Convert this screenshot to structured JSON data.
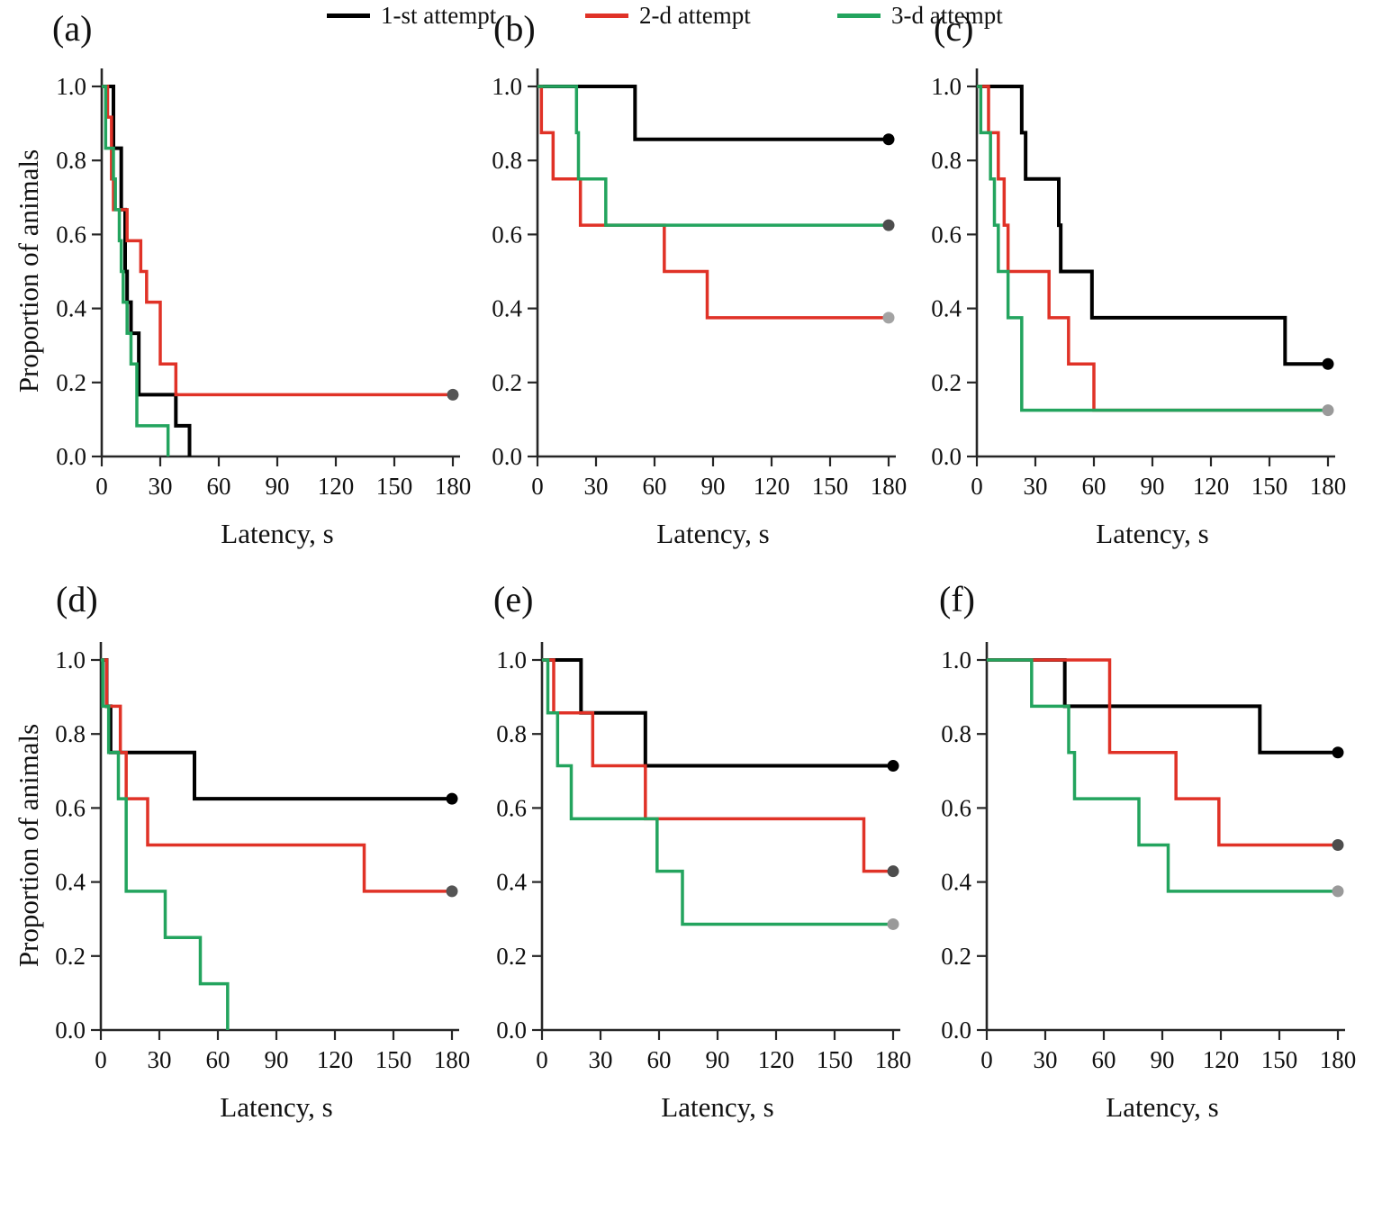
{
  "figure": {
    "panel_labels": [
      "(a)",
      "(b)",
      "(c)",
      "(d)",
      "(e)",
      "(f)"
    ],
    "y_axis_title": "Proportion of animals",
    "x_axis_title": "Latency, s",
    "axis_color": "#262626",
    "legend": [
      {
        "label": "1-st attempt",
        "color": "#000000"
      },
      {
        "label": "2-d attempt",
        "color": "#e03227"
      },
      {
        "label": "3-d attempt",
        "color": "#23a45e"
      }
    ]
  },
  "chart_data": [
    {
      "panel": "(a)",
      "type": "line",
      "subtype": "kaplan-meier-step",
      "xlabel": "Latency, s",
      "ylabel": "Proportion of animals",
      "show_ylabel": true,
      "xlim": [
        0,
        180
      ],
      "ylim": [
        0.0,
        1.0
      ],
      "xticks": [
        0,
        30,
        60,
        90,
        120,
        150,
        180
      ],
      "yticks": [
        "0.0",
        "0.2",
        "0.4",
        "0.6",
        "0.8",
        "1.0"
      ],
      "series": [
        {
          "name": "1-st attempt",
          "color": "#000000",
          "width": 4,
          "points": [
            [
              0,
              1.0
            ],
            [
              6,
              0.833
            ],
            [
              10,
              0.667
            ],
            [
              12,
              0.5
            ],
            [
              13,
              0.417
            ],
            [
              15,
              0.333
            ],
            [
              19,
              0.167
            ],
            [
              38,
              0.083
            ],
            [
              45,
              0.0
            ]
          ],
          "end_dot": null
        },
        {
          "name": "2-d attempt",
          "color": "#e03227",
          "width": 3.5,
          "points": [
            [
              0,
              1.0
            ],
            [
              3,
              0.917
            ],
            [
              5,
              0.75
            ],
            [
              6,
              0.667
            ],
            [
              13,
              0.583
            ],
            [
              20,
              0.5
            ],
            [
              23,
              0.417
            ],
            [
              30,
              0.25
            ],
            [
              38,
              0.167
            ],
            [
              180,
              0.167
            ]
          ],
          "end_dot": "#555555"
        },
        {
          "name": "3-d attempt",
          "color": "#23a45e",
          "width": 3.5,
          "points": [
            [
              0,
              1.0
            ],
            [
              2,
              0.833
            ],
            [
              6,
              0.75
            ],
            [
              7,
              0.667
            ],
            [
              9,
              0.583
            ],
            [
              10,
              0.5
            ],
            [
              11,
              0.417
            ],
            [
              13,
              0.333
            ],
            [
              15,
              0.25
            ],
            [
              18,
              0.083
            ],
            [
              34,
              0.0
            ]
          ],
          "end_dot": null
        }
      ]
    },
    {
      "panel": "(b)",
      "type": "line",
      "subtype": "kaplan-meier-step",
      "xlabel": "Latency, s",
      "ylabel": "Proportion of animals",
      "show_ylabel": false,
      "xlim": [
        0,
        180
      ],
      "ylim": [
        0.0,
        1.0
      ],
      "xticks": [
        0,
        30,
        60,
        90,
        120,
        150,
        180
      ],
      "yticks": [
        "0.0",
        "0.2",
        "0.4",
        "0.6",
        "0.8",
        "1.0"
      ],
      "series": [
        {
          "name": "1-st attempt",
          "color": "#000000",
          "width": 4,
          "points": [
            [
              0,
              1.0
            ],
            [
              50,
              0.857
            ],
            [
              180,
              0.857
            ]
          ],
          "end_dot": "#000000"
        },
        {
          "name": "2-d attempt",
          "color": "#e03227",
          "width": 3.5,
          "points": [
            [
              0,
              1.0
            ],
            [
              2,
              0.875
            ],
            [
              8,
              0.75
            ],
            [
              22,
              0.625
            ],
            [
              65,
              0.5
            ],
            [
              87,
              0.375
            ],
            [
              180,
              0.375
            ]
          ],
          "end_dot": "#a3a3a3"
        },
        {
          "name": "3-d attempt",
          "color": "#23a45e",
          "width": 3.5,
          "points": [
            [
              0,
              1.0
            ],
            [
              20,
              0.875
            ],
            [
              21,
              0.75
            ],
            [
              35,
              0.625
            ],
            [
              180,
              0.625
            ]
          ],
          "end_dot": "#4d4d4d"
        }
      ]
    },
    {
      "panel": "(c)",
      "type": "line",
      "subtype": "kaplan-meier-step",
      "xlabel": "Latency, s",
      "ylabel": "Proportion of animals",
      "show_ylabel": false,
      "xlim": [
        0,
        180
      ],
      "ylim": [
        0.0,
        1.0
      ],
      "xticks": [
        0,
        30,
        60,
        90,
        120,
        150,
        180
      ],
      "yticks": [
        "0.0",
        "0.2",
        "0.4",
        "0.6",
        "0.8",
        "1.0"
      ],
      "series": [
        {
          "name": "1-st attempt",
          "color": "#000000",
          "width": 4,
          "points": [
            [
              0,
              1.0
            ],
            [
              23,
              0.875
            ],
            [
              25,
              0.75
            ],
            [
              42,
              0.625
            ],
            [
              43,
              0.5
            ],
            [
              59,
              0.375
            ],
            [
              158,
              0.25
            ],
            [
              180,
              0.25
            ]
          ],
          "end_dot": "#000000"
        },
        {
          "name": "2-d attempt",
          "color": "#e03227",
          "width": 3.5,
          "points": [
            [
              0,
              1.0
            ],
            [
              6,
              0.875
            ],
            [
              11,
              0.75
            ],
            [
              14,
              0.625
            ],
            [
              16,
              0.5
            ],
            [
              37,
              0.375
            ],
            [
              47,
              0.25
            ],
            [
              60,
              0.125
            ],
            [
              180,
              0.125
            ]
          ],
          "end_dot": null
        },
        {
          "name": "3-d attempt",
          "color": "#23a45e",
          "width": 3.5,
          "points": [
            [
              0,
              1.0
            ],
            [
              2,
              0.875
            ],
            [
              7,
              0.75
            ],
            [
              9,
              0.625
            ],
            [
              11,
              0.5
            ],
            [
              16,
              0.375
            ],
            [
              23,
              0.125
            ],
            [
              180,
              0.125
            ]
          ],
          "end_dot": "#9a9a9a"
        }
      ]
    },
    {
      "panel": "(d)",
      "type": "line",
      "subtype": "kaplan-meier-step",
      "xlabel": "Latency, s",
      "ylabel": "Proportion of animals",
      "show_ylabel": true,
      "xlim": [
        0,
        180
      ],
      "ylim": [
        0.0,
        1.0
      ],
      "xticks": [
        0,
        30,
        60,
        90,
        120,
        150,
        180
      ],
      "yticks": [
        "0.0",
        "0.2",
        "0.4",
        "0.6",
        "0.8",
        "1.0"
      ],
      "series": [
        {
          "name": "1-st attempt",
          "color": "#000000",
          "width": 4,
          "points": [
            [
              0,
              1.0
            ],
            [
              3,
              0.875
            ],
            [
              5,
              0.75
            ],
            [
              48,
              0.625
            ],
            [
              180,
              0.625
            ]
          ],
          "end_dot": "#000000"
        },
        {
          "name": "2-d attempt",
          "color": "#e03227",
          "width": 3.5,
          "points": [
            [
              0,
              1.0
            ],
            [
              3,
              0.875
            ],
            [
              10,
              0.75
            ],
            [
              13,
              0.625
            ],
            [
              24,
              0.5
            ],
            [
              135,
              0.375
            ],
            [
              180,
              0.375
            ]
          ],
          "end_dot": "#555555"
        },
        {
          "name": "3-d attempt",
          "color": "#23a45e",
          "width": 3.5,
          "points": [
            [
              0,
              1.0
            ],
            [
              1,
              0.875
            ],
            [
              4,
              0.75
            ],
            [
              9,
              0.625
            ],
            [
              13,
              0.375
            ],
            [
              33,
              0.25
            ],
            [
              51,
              0.125
            ],
            [
              65,
              0.0
            ]
          ],
          "end_dot": null
        }
      ]
    },
    {
      "panel": "(e)",
      "type": "line",
      "subtype": "kaplan-meier-step",
      "xlabel": "Latency, s",
      "ylabel": "Proportion of animals",
      "show_ylabel": false,
      "xlim": [
        0,
        180
      ],
      "ylim": [
        0.0,
        1.0
      ],
      "xticks": [
        0,
        30,
        60,
        90,
        120,
        150,
        180
      ],
      "yticks": [
        "0.0",
        "0.2",
        "0.4",
        "0.6",
        "0.8",
        "1.0"
      ],
      "series": [
        {
          "name": "1-st attempt",
          "color": "#000000",
          "width": 4,
          "points": [
            [
              0,
              1.0
            ],
            [
              20,
              0.857
            ],
            [
              53,
              0.714
            ],
            [
              180,
              0.714
            ]
          ],
          "end_dot": "#000000"
        },
        {
          "name": "2-d attempt",
          "color": "#e03227",
          "width": 3.5,
          "points": [
            [
              0,
              1.0
            ],
            [
              6,
              0.857
            ],
            [
              26,
              0.714
            ],
            [
              53,
              0.571
            ],
            [
              165,
              0.429
            ],
            [
              180,
              0.429
            ]
          ],
          "end_dot": "#4d4d4d"
        },
        {
          "name": "3-d attempt",
          "color": "#23a45e",
          "width": 3.5,
          "points": [
            [
              0,
              1.0
            ],
            [
              3,
              0.857
            ],
            [
              8,
              0.714
            ],
            [
              15,
              0.571
            ],
            [
              59,
              0.429
            ],
            [
              72,
              0.286
            ],
            [
              180,
              0.286
            ]
          ],
          "end_dot": "#9a9a9a"
        }
      ]
    },
    {
      "panel": "(f)",
      "type": "line",
      "subtype": "kaplan-meier-step",
      "xlabel": "Latency, s",
      "ylabel": "Proportion of animals",
      "show_ylabel": false,
      "xlim": [
        0,
        180
      ],
      "ylim": [
        0.0,
        1.0
      ],
      "xticks": [
        0,
        30,
        60,
        90,
        120,
        150,
        180
      ],
      "yticks": [
        "0.0",
        "0.2",
        "0.4",
        "0.6",
        "0.8",
        "1.0"
      ],
      "series": [
        {
          "name": "1-st attempt",
          "color": "#000000",
          "width": 4,
          "points": [
            [
              0,
              1.0
            ],
            [
              40,
              0.875
            ],
            [
              140,
              0.75
            ],
            [
              180,
              0.75
            ]
          ],
          "end_dot": "#000000"
        },
        {
          "name": "2-d attempt",
          "color": "#e03227",
          "width": 3.5,
          "points": [
            [
              0,
              1.0
            ],
            [
              63,
              0.75
            ],
            [
              97,
              0.625
            ],
            [
              119,
              0.5
            ],
            [
              180,
              0.5
            ]
          ],
          "end_dot": "#4d4d4d"
        },
        {
          "name": "3-d attempt",
          "color": "#23a45e",
          "width": 3.5,
          "points": [
            [
              0,
              1.0
            ],
            [
              23,
              0.875
            ],
            [
              42,
              0.75
            ],
            [
              45,
              0.625
            ],
            [
              78,
              0.5
            ],
            [
              93,
              0.375
            ],
            [
              180,
              0.375
            ]
          ],
          "end_dot": "#9a9a9a"
        }
      ]
    }
  ]
}
